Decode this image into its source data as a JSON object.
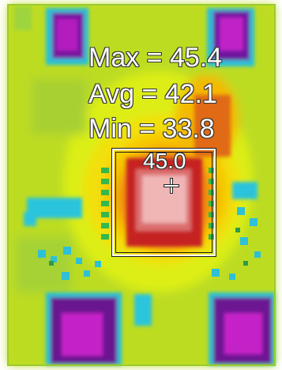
{
  "thermal_image": {
    "palette": [
      "#6a0a8c",
      "#c41ec8",
      "#2fc8e0",
      "#88d03a",
      "#d8ec10",
      "#f8d400",
      "#f08a10",
      "#d83a1c",
      "#c21e1e",
      "#f0b0b0"
    ],
    "overlay": {
      "max_text": "Max = 45.4",
      "avg_text": "Avg = 42.1",
      "min_text": "Min = 33.8",
      "spot_text": "45.0"
    }
  }
}
